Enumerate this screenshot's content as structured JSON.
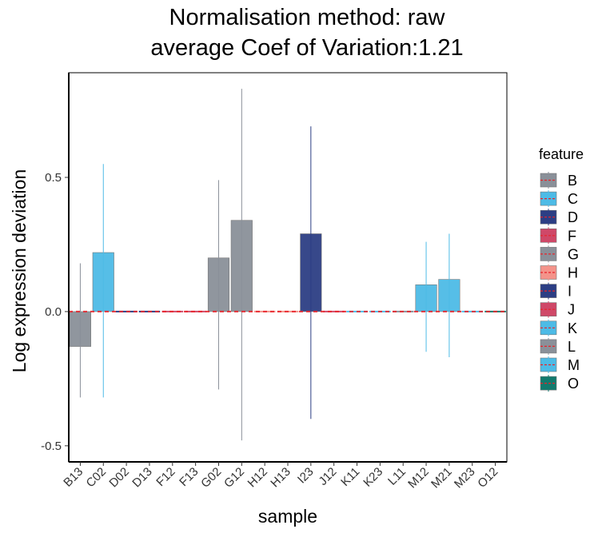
{
  "chart_data": {
    "type": "bar",
    "title": [
      "Normalisation method: raw",
      "average Coef of Variation:1.21"
    ],
    "xlabel": "sample",
    "ylabel": "Log expression deviation",
    "ylim": [
      -0.56,
      0.89
    ],
    "yticks": [
      -0.5,
      0.0,
      0.5
    ],
    "ytick_labels": [
      "-0.5",
      "0.0",
      "0.5"
    ],
    "grid": false,
    "legend_title": "feature",
    "legend_position": "right",
    "features": [
      {
        "name": "B",
        "color": "#8A9099"
      },
      {
        "name": "C",
        "color": "#4DBBE6"
      },
      {
        "name": "D",
        "color": "#2C3E84"
      },
      {
        "name": "F",
        "color": "#CF4868"
      },
      {
        "name": "G",
        "color": "#8A9099"
      },
      {
        "name": "H",
        "color": "#F4938A"
      },
      {
        "name": "I",
        "color": "#2C3E84"
      },
      {
        "name": "J",
        "color": "#CF4868"
      },
      {
        "name": "K",
        "color": "#4DBBE6"
      },
      {
        "name": "L",
        "color": "#8A9099"
      },
      {
        "name": "M",
        "color": "#4DBBE6"
      },
      {
        "name": "O",
        "color": "#127A6E"
      }
    ],
    "categories": [
      "B13",
      "C02",
      "D02",
      "D13",
      "F12",
      "F13",
      "G02",
      "G12",
      "H12",
      "H13",
      "I23",
      "J12",
      "K11",
      "K23",
      "L11",
      "M12",
      "M21",
      "M23",
      "O12"
    ],
    "bars": [
      {
        "sample": "B13",
        "feature": "B",
        "value": -0.13,
        "err_low": -0.32,
        "err_high": 0.18
      },
      {
        "sample": "C02",
        "feature": "C",
        "value": 0.22,
        "err_low": -0.32,
        "err_high": 0.55
      },
      {
        "sample": "D02",
        "feature": "D",
        "value": 0.0,
        "err_low": 0.0,
        "err_high": 0.0
      },
      {
        "sample": "D13",
        "feature": "D",
        "value": 0.0,
        "err_low": 0.0,
        "err_high": 0.0
      },
      {
        "sample": "F12",
        "feature": "F",
        "value": 0.0,
        "err_low": 0.0,
        "err_high": 0.0
      },
      {
        "sample": "F13",
        "feature": "F",
        "value": 0.0,
        "err_low": 0.0,
        "err_high": 0.0
      },
      {
        "sample": "G02",
        "feature": "G",
        "value": 0.2,
        "err_low": -0.29,
        "err_high": 0.49
      },
      {
        "sample": "G12",
        "feature": "G",
        "value": 0.34,
        "err_low": -0.48,
        "err_high": 0.83
      },
      {
        "sample": "H12",
        "feature": "H",
        "value": 0.0,
        "err_low": 0.0,
        "err_high": 0.0
      },
      {
        "sample": "H13",
        "feature": "H",
        "value": 0.0,
        "err_low": 0.0,
        "err_high": 0.0
      },
      {
        "sample": "I23",
        "feature": "I",
        "value": 0.29,
        "err_low": -0.4,
        "err_high": 0.69
      },
      {
        "sample": "J12",
        "feature": "J",
        "value": 0.0,
        "err_low": 0.0,
        "err_high": 0.0
      },
      {
        "sample": "K11",
        "feature": "K",
        "value": 0.0,
        "err_low": 0.0,
        "err_high": 0.0
      },
      {
        "sample": "K23",
        "feature": "K",
        "value": 0.0,
        "err_low": 0.0,
        "err_high": 0.0
      },
      {
        "sample": "L11",
        "feature": "L",
        "value": 0.0,
        "err_low": 0.0,
        "err_high": 0.0
      },
      {
        "sample": "M12",
        "feature": "M",
        "value": 0.1,
        "err_low": -0.15,
        "err_high": 0.26
      },
      {
        "sample": "M21",
        "feature": "M",
        "value": 0.12,
        "err_low": -0.17,
        "err_high": 0.29
      },
      {
        "sample": "M23",
        "feature": "M",
        "value": 0.0,
        "err_low": 0.0,
        "err_high": 0.0
      },
      {
        "sample": "O12",
        "feature": "O",
        "value": 0.0,
        "err_low": 0.0,
        "err_high": 0.0
      }
    ],
    "reference_line": {
      "y": 0.0,
      "color": "#E8232A",
      "style": "dashed"
    }
  }
}
